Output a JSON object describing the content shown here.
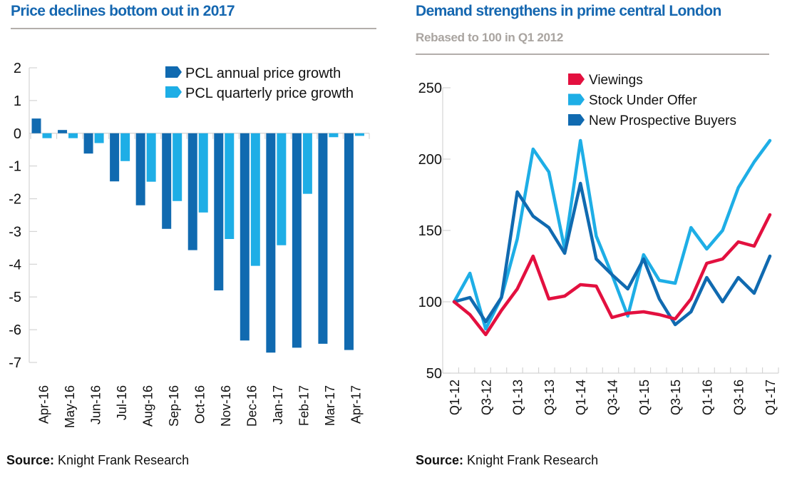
{
  "left": {
    "title": "Price declines bottom out in 2017",
    "source_label": "Source:",
    "source_text": "Knight Frank Research"
  },
  "right": {
    "title": "Demand strengthens in prime central London",
    "subtitle": "Rebased to 100 in Q1 2012",
    "source_label": "Source:",
    "source_text": "Knight Frank Research"
  },
  "colors": {
    "title_blue": "#1567b0",
    "subtitle_grey": "#a9a4a0",
    "dark_blue": "#106ab0",
    "light_blue": "#1eaee6",
    "red": "#e3103f",
    "axis_grey": "#d4d4d4"
  },
  "chart_data": [
    {
      "type": "bar",
      "title": "Price declines bottom out in 2017",
      "xlabel": "",
      "ylabel": "",
      "ylim": [
        -7,
        2
      ],
      "yticks": [
        2,
        1,
        0,
        -1,
        -2,
        -3,
        -4,
        -5,
        -6,
        -7
      ],
      "grid": false,
      "legend_position": "top-right",
      "categories": [
        "Apr-16",
        "May-16",
        "Jun-16",
        "Jul-16",
        "Aug-16",
        "Sep-16",
        "Oct-16",
        "Nov-16",
        "Dec-16",
        "Jan-17",
        "Feb-17",
        "Mar-17",
        "Apr-17"
      ],
      "series": [
        {
          "name": "PCL annual price growth",
          "color": "#106ab0",
          "values": [
            0.45,
            0.1,
            -0.62,
            -1.47,
            -2.2,
            -2.92,
            -3.57,
            -4.8,
            -6.33,
            -6.7,
            -6.55,
            -6.43,
            -6.62
          ]
        },
        {
          "name": "PCL quarterly price growth",
          "color": "#1eaee6",
          "values": [
            -0.15,
            -0.15,
            -0.3,
            -0.85,
            -1.48,
            -2.07,
            -2.42,
            -3.23,
            -4.05,
            -3.42,
            -1.85,
            -0.12,
            -0.08
          ]
        }
      ]
    },
    {
      "type": "line",
      "title": "Demand strengthens in prime central London",
      "subtitle": "Rebased to 100 in Q1 2012",
      "xlabel": "",
      "ylabel": "",
      "ylim": [
        50,
        250
      ],
      "yticks": [
        250,
        200,
        150,
        100,
        50
      ],
      "grid": false,
      "legend_position": "top-right",
      "x": [
        "Q1-12",
        "Q2-12",
        "Q3-12",
        "Q4-12",
        "Q1-13",
        "Q2-13",
        "Q3-13",
        "Q4-13",
        "Q1-14",
        "Q2-14",
        "Q3-14",
        "Q4-14",
        "Q1-15",
        "Q2-15",
        "Q3-15",
        "Q4-15",
        "Q1-16",
        "Q2-16",
        "Q3-16",
        "Q4-16",
        "Q1-17"
      ],
      "xtick_labels": [
        "Q1-12",
        "Q3-12",
        "Q1-13",
        "Q3-13",
        "Q1-14",
        "Q3-14",
        "Q1-15",
        "Q3-15",
        "Q1-16",
        "Q3-16",
        "Q1-17"
      ],
      "series": [
        {
          "name": "Viewings",
          "color": "#e3103f",
          "values": [
            100,
            91,
            77,
            94,
            109,
            132,
            102,
            104,
            112,
            111,
            89,
            92,
            93,
            91,
            88,
            102,
            127,
            130,
            142,
            139,
            161
          ]
        },
        {
          "name": "Stock Under Offer",
          "color": "#1eaee6",
          "values": [
            100,
            120,
            81,
            103,
            144,
            207,
            191,
            137,
            213,
            146,
            119,
            90,
            133,
            115,
            113,
            152,
            137,
            150,
            180,
            198,
            213
          ]
        },
        {
          "name": "New Prospective Buyers",
          "color": "#106ab0",
          "values": [
            100,
            103,
            86,
            103,
            177,
            160,
            152,
            134,
            183,
            130,
            119,
            109,
            130,
            102,
            84,
            93,
            117,
            100,
            117,
            106,
            132
          ]
        }
      ]
    }
  ]
}
